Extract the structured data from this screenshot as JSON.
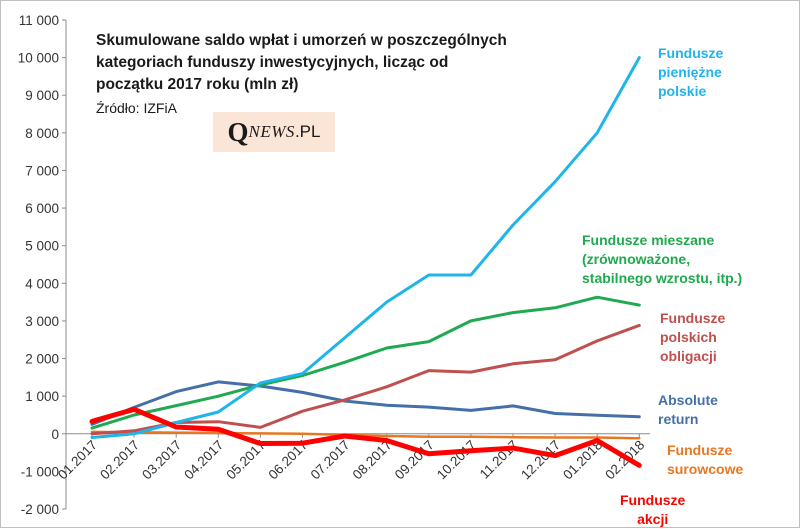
{
  "chart_data": {
    "type": "line",
    "title": "Skumulowane saldo wpłat i umorzeń w poszczególnych kategoriach funduszy inwestycyjnych, licząc od początku 2017 roku (mln zł)",
    "title_lines": [
      "Skumulowane saldo wpłat i umorzeń w poszczególnych",
      "kategoriach funduszy inwestycyjnych, licząc od",
      "początku 2017 roku (mln zł)"
    ],
    "source": "Źródło: IZFiA",
    "xlabel": "",
    "ylabel": "",
    "ylim": [
      -2000,
      11000
    ],
    "yticks": [
      -2000,
      -1000,
      0,
      1000,
      2000,
      3000,
      4000,
      5000,
      6000,
      7000,
      8000,
      9000,
      10000,
      11000
    ],
    "ytick_labels": [
      "-2 000",
      "-1 000",
      "0",
      "1 000",
      "2 000",
      "3 000",
      "4 000",
      "5 000",
      "6 000",
      "7 000",
      "8 000",
      "9 000",
      "10 000",
      "11 000"
    ],
    "categories": [
      "01.2017",
      "02.2017",
      "03.2017",
      "04.2017",
      "05.2017",
      "06.2017",
      "07.2017",
      "08.2017",
      "09.2017",
      "10.2017",
      "11.2017",
      "12.2017",
      "01.2018",
      "02.2018"
    ],
    "grid": false,
    "legend": "inline labels right",
    "series": [
      {
        "name": "Fundusze pieniężne polskie",
        "label_lines": [
          "Fundusze",
          "pieniężne",
          "polskie"
        ],
        "color": "#1fb5ea",
        "width": 3,
        "values": [
          -100,
          0,
          300,
          580,
          1350,
          1600,
          2550,
          3500,
          4220,
          4220,
          5550,
          6700,
          8000,
          10000
        ]
      },
      {
        "name": "Fundusze mieszane (zrównoważone, stabilnego wzrostu, itp.)",
        "label_lines": [
          "Fundusze mieszane",
          "(zrównoważone,",
          "stabilnego wzrostu, itp.)"
        ],
        "color": "#1faa4f",
        "width": 3,
        "values": [
          150,
          500,
          750,
          1000,
          1300,
          1550,
          1900,
          2280,
          2450,
          3000,
          3220,
          3350,
          3630,
          3420
        ]
      },
      {
        "name": "Fundusze polskich obligacji",
        "label_lines": [
          "Fundusze",
          "polskich",
          "obligacji"
        ],
        "color": "#c0504d",
        "width": 3,
        "values": [
          0,
          80,
          300,
          320,
          170,
          600,
          900,
          1250,
          1680,
          1640,
          1860,
          1970,
          2470,
          2880
        ]
      },
      {
        "name": "Absolute return",
        "label_lines": [
          "Absolute",
          "return"
        ],
        "color": "#4470a8",
        "width": 3,
        "values": [
          250,
          700,
          1120,
          1380,
          1270,
          1100,
          870,
          760,
          710,
          620,
          740,
          540,
          490,
          450
        ]
      },
      {
        "name": "Fundusze surowcowe",
        "label_lines": [
          "Fundusze",
          "surowcowe"
        ],
        "color": "#e87722",
        "width": 2.5,
        "values": [
          50,
          40,
          30,
          20,
          10,
          0,
          -30,
          -60,
          -80,
          -80,
          -90,
          -100,
          -100,
          -120
        ]
      },
      {
        "name": "Fundusze akcji",
        "label_lines": [
          "Fundusze",
          "akcji"
        ],
        "color": "#ff0000",
        "width": 5,
        "values": [
          330,
          650,
          180,
          120,
          -260,
          -250,
          -60,
          -180,
          -530,
          -450,
          -380,
          -580,
          -180,
          -840
        ]
      }
    ]
  },
  "logo": {
    "q": "Q",
    "news": "NEWS",
    "pl": ".PL"
  }
}
